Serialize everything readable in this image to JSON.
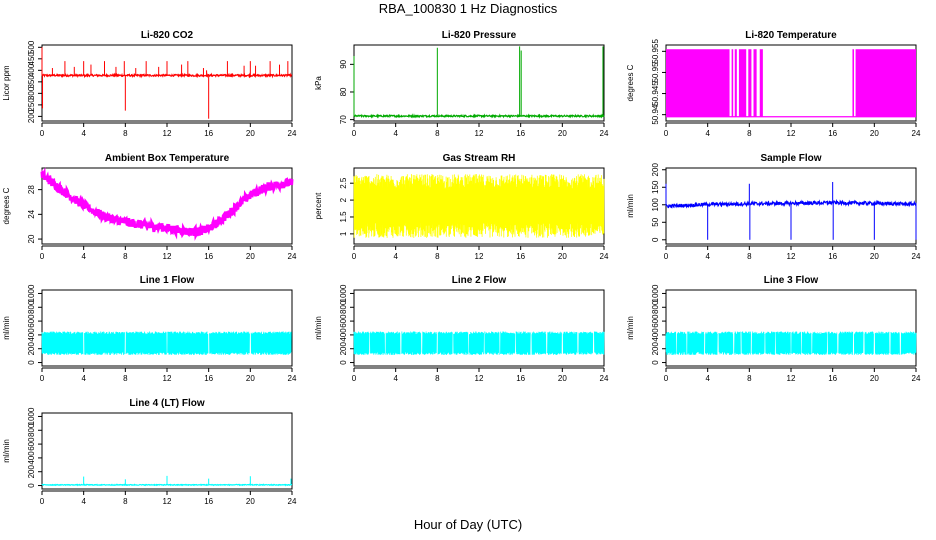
{
  "figure": {
    "title": "RBA_100830  1 Hz Diagnostics",
    "xlabel": "Hour of Day (UTC)"
  },
  "chart_data": [
    {
      "type": "line",
      "title": "Li-820 CO2",
      "ylabel": "Licor ppm",
      "color": "#ff0000",
      "xlim": [
        0,
        24
      ],
      "ylim": [
        180,
        510
      ],
      "xticks": [
        0,
        4,
        8,
        12,
        16,
        20,
        24
      ],
      "yticks": [
        200,
        250,
        300,
        350,
        400,
        450,
        500
      ],
      "baseline": 378,
      "band": 4,
      "spikes": [
        {
          "x": 0.0,
          "y": 500
        },
        {
          "x": 0.05,
          "y": 235
        },
        {
          "x": 1.0,
          "y": 410
        },
        {
          "x": 2.2,
          "y": 440
        },
        {
          "x": 3.1,
          "y": 415
        },
        {
          "x": 4.0,
          "y": 440
        },
        {
          "x": 4.7,
          "y": 425
        },
        {
          "x": 6.0,
          "y": 440
        },
        {
          "x": 7.1,
          "y": 415
        },
        {
          "x": 7.9,
          "y": 440
        },
        {
          "x": 8.0,
          "y": 225
        },
        {
          "x": 9.0,
          "y": 410
        },
        {
          "x": 10.0,
          "y": 440
        },
        {
          "x": 11.2,
          "y": 415
        },
        {
          "x": 12.0,
          "y": 440
        },
        {
          "x": 13.4,
          "y": 425
        },
        {
          "x": 14.0,
          "y": 440
        },
        {
          "x": 15.5,
          "y": 410
        },
        {
          "x": 15.8,
          "y": 400
        },
        {
          "x": 16.0,
          "y": 190
        },
        {
          "x": 17.8,
          "y": 440
        },
        {
          "x": 19.4,
          "y": 420
        },
        {
          "x": 20.0,
          "y": 440
        },
        {
          "x": 20.5,
          "y": 420
        },
        {
          "x": 21.9,
          "y": 440
        },
        {
          "x": 22.8,
          "y": 425
        },
        {
          "x": 23.6,
          "y": 440
        }
      ]
    },
    {
      "type": "line",
      "title": "Li-820 Pressure",
      "ylabel": "kPa",
      "color": "#00aa00",
      "xlim": [
        0,
        24
      ],
      "ylim": [
        69.5,
        97
      ],
      "xticks": [
        0,
        4,
        8,
        12,
        16,
        20,
        24
      ],
      "yticks": [
        70,
        80,
        90
      ],
      "baseline": 71.3,
      "band": 0.3,
      "spikes": [
        {
          "x": 0.0,
          "y": 93
        },
        {
          "x": 8.0,
          "y": 96
        },
        {
          "x": 15.9,
          "y": 96.5
        },
        {
          "x": 16.05,
          "y": 95
        },
        {
          "x": 23.9,
          "y": 96.5
        }
      ]
    },
    {
      "type": "line",
      "title": "Li-820 Temperature",
      "ylabel": "degrees C",
      "color": "#ff00ff",
      "xlim": [
        0,
        24
      ],
      "ylim": [
        50.9385,
        50.9565
      ],
      "xticks": [
        0,
        4,
        8,
        12,
        16,
        20,
        24
      ],
      "yticks": [
        50.94,
        50.945,
        50.95,
        50.955
      ],
      "low": 50.9395,
      "high": 50.9555,
      "high_segments": [
        [
          0,
          6.1
        ],
        [
          6.3,
          6.45
        ],
        [
          6.6,
          6.8
        ],
        [
          7.0,
          7.7
        ],
        [
          7.9,
          8.2
        ],
        [
          8.4,
          8.7
        ],
        [
          9.0,
          9.3
        ],
        [
          17.9,
          18.05
        ],
        [
          18.2,
          24
        ]
      ]
    },
    {
      "type": "line",
      "title": "Ambient Box Temperature",
      "ylabel": "degrees C",
      "color": "#ff00ff",
      "xlim": [
        0,
        24
      ],
      "ylim": [
        19.2,
        31.5
      ],
      "xticks": [
        0,
        4,
        8,
        12,
        16,
        20,
        24
      ],
      "yticks": [
        20,
        24,
        28
      ],
      "band": 0.7,
      "x": [
        0,
        1,
        2,
        3,
        4,
        5,
        6,
        7,
        8,
        9,
        10,
        11,
        12,
        13,
        14,
        15,
        16,
        17,
        18,
        19,
        20,
        21,
        22,
        23,
        24
      ],
      "y": [
        30.3,
        29.2,
        27.8,
        26.6,
        25.5,
        24.5,
        23.7,
        23.1,
        22.8,
        22.5,
        22.2,
        22.0,
        21.8,
        21.5,
        21.2,
        21.2,
        21.7,
        22.8,
        24.2,
        25.8,
        27.1,
        28.0,
        28.6,
        28.9,
        29.1
      ]
    },
    {
      "type": "line",
      "title": "Gas Stream RH",
      "ylabel": "percent",
      "color": "#ffff00",
      "xlim": [
        0,
        24
      ],
      "ylim": [
        0.7,
        2.95
      ],
      "xticks": [
        0,
        4,
        8,
        12,
        16,
        20,
        24
      ],
      "yticks": [
        1.0,
        1.5,
        2.0,
        2.5
      ],
      "low": 1.1,
      "high": 2.55,
      "jitter": 0.22
    },
    {
      "type": "line",
      "title": "Sample Flow",
      "ylabel": "ml/min",
      "color": "#0000ff",
      "xlim": [
        0,
        24
      ],
      "ylim": [
        -12,
        205
      ],
      "xticks": [
        0,
        4,
        8,
        12,
        16,
        20,
        24
      ],
      "yticks": [
        0,
        50,
        100,
        150,
        200
      ],
      "baseline": 100,
      "band": 5,
      "x": [
        0,
        4,
        8,
        12,
        16,
        20,
        24
      ],
      "y": [
        96,
        101,
        103,
        104,
        106,
        104,
        102
      ],
      "spikes": [
        {
          "x": 0.0,
          "y": 160
        },
        {
          "x": 4.0,
          "y": 0
        },
        {
          "x": 8.0,
          "y": 160
        },
        {
          "x": 8.05,
          "y": 0
        },
        {
          "x": 12.0,
          "y": 0
        },
        {
          "x": 16.0,
          "y": 165
        },
        {
          "x": 16.05,
          "y": 0
        },
        {
          "x": 20.0,
          "y": 0
        },
        {
          "x": 24.0,
          "y": 0
        }
      ]
    },
    {
      "type": "line",
      "title": "Line 1 Flow",
      "ylabel": "ml/min",
      "color": "#00ffff",
      "xlim": [
        0,
        24
      ],
      "ylim": [
        -50,
        1050
      ],
      "xticks": [
        0,
        4,
        8,
        12,
        16,
        20,
        24
      ],
      "yticks": [
        0,
        200,
        400,
        600,
        800,
        1000
      ],
      "low": 130,
      "high": 430,
      "jitter": 20,
      "gaps": [
        4,
        8,
        12,
        16,
        20,
        24
      ]
    },
    {
      "type": "line",
      "title": "Line 2 Flow",
      "ylabel": "ml/min",
      "color": "#00ffff",
      "xlim": [
        0,
        24
      ],
      "ylim": [
        -50,
        1050
      ],
      "xticks": [
        0,
        4,
        8,
        12,
        16,
        20,
        24
      ],
      "yticks": [
        0,
        200,
        400,
        600,
        800,
        1000
      ],
      "low": 130,
      "high": 430,
      "jitter": 20,
      "gaps": [
        1.5,
        3,
        4.5,
        6.5,
        8,
        9.5,
        11,
        12.5,
        14,
        15.5,
        17,
        18.5,
        20,
        21.5,
        23
      ]
    },
    {
      "type": "line",
      "title": "Line 3 Flow",
      "ylabel": "ml/min",
      "color": "#00ffff",
      "xlim": [
        0,
        24
      ],
      "ylim": [
        -50,
        1050
      ],
      "xticks": [
        0,
        4,
        8,
        12,
        16,
        20,
        24
      ],
      "yticks": [
        0,
        200,
        400,
        600,
        800,
        1000
      ],
      "low": 130,
      "high": 430,
      "jitter": 20,
      "gaps": [
        1,
        2,
        3.7,
        5,
        6.5,
        7.2,
        8.2,
        9.5,
        10.5,
        12,
        13,
        14,
        15.5,
        16.5,
        18,
        19,
        20,
        21.5,
        22.5
      ]
    },
    {
      "type": "line",
      "title": "Line 4 (LT) Flow",
      "ylabel": "ml/min",
      "color": "#00ffff",
      "xlim": [
        0,
        24
      ],
      "ylim": [
        -50,
        1050
      ],
      "xticks": [
        0,
        4,
        8,
        12,
        16,
        20,
        24
      ],
      "yticks": [
        0,
        200,
        400,
        600,
        800,
        1000
      ],
      "baseline": 10,
      "band": 6,
      "spikes": [
        {
          "x": 4.0,
          "y": 130
        },
        {
          "x": 8.0,
          "y": 90
        },
        {
          "x": 12.0,
          "y": 140
        },
        {
          "x": 16.0,
          "y": 100
        },
        {
          "x": 20.0,
          "y": 135
        },
        {
          "x": 23.9,
          "y": 100
        }
      ]
    }
  ]
}
